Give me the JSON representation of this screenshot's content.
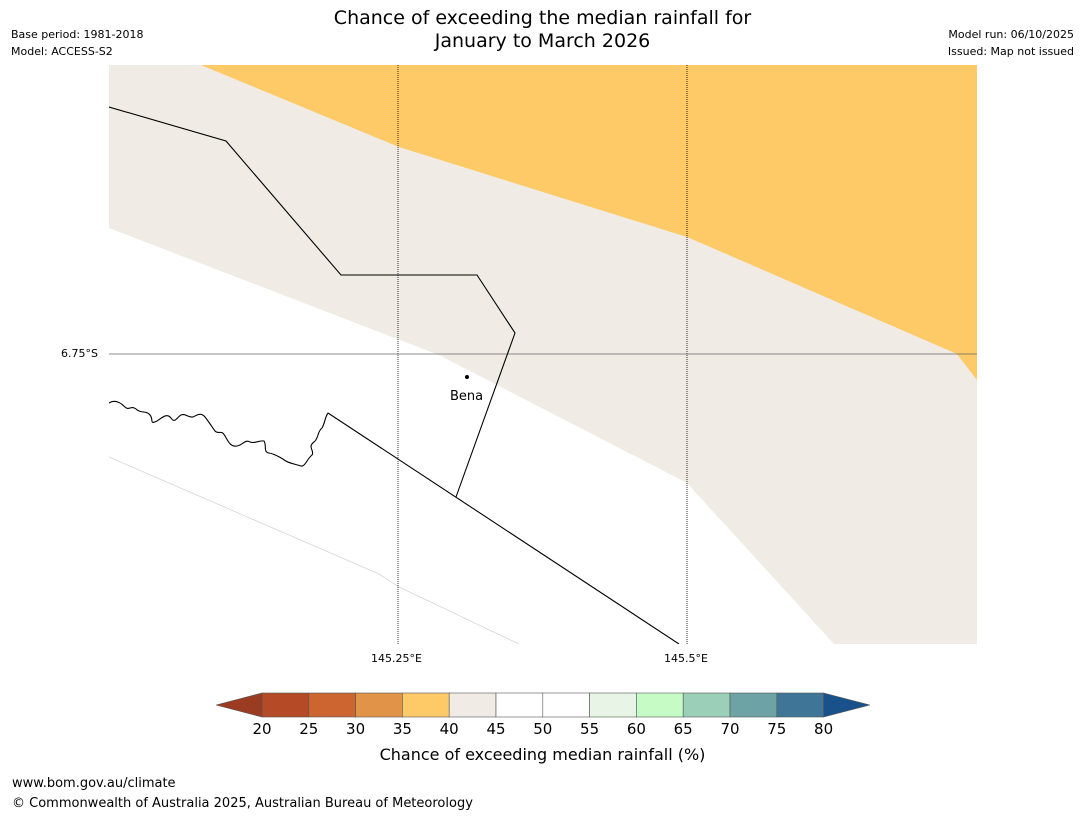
{
  "header": {
    "title_line1": "Chance of exceeding the median rainfall for",
    "title_line2": "January to March 2026",
    "base_period": "Base period: 1981-2018",
    "model": "Model: ACCESS-S2",
    "model_run": "Model run: 06/10/2025",
    "issued": "Issued: Map not issued"
  },
  "map": {
    "latitude_label": "6.75°S",
    "longitude_labels": [
      "145.25°E",
      "145.5°E"
    ],
    "place": {
      "name": "Bena"
    },
    "fill_colors": {
      "band_35_40": "#fdca67",
      "band_40_45": "#f0ebe5",
      "band_45_55": "#ffffff"
    }
  },
  "colorbar": {
    "ticks": [
      "20",
      "25",
      "30",
      "35",
      "40",
      "45",
      "50",
      "55",
      "60",
      "65",
      "70",
      "75",
      "80"
    ],
    "colors": [
      "#9a3b22",
      "#b44a26",
      "#cd6531",
      "#e19448",
      "#fdca67",
      "#f0ebe5",
      "#ffffff",
      "#ffffff",
      "#e8f5e6",
      "#c7fbc5",
      "#9ccfb8",
      "#6ea3a6",
      "#3f7698",
      "#19518a"
    ],
    "label": "Chance of exceeding median rainfall (%)"
  },
  "footer": {
    "url": "www.bom.gov.au/climate",
    "copyright": "© Commonwealth of Australia 2025, Australian Bureau of Meteorology"
  }
}
